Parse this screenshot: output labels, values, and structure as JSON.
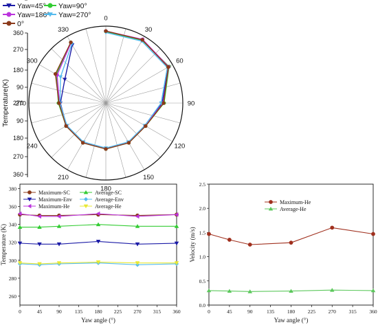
{
  "chart_data": [
    {
      "type": "polar-line",
      "title": "",
      "radial_label": "Temperature(K)",
      "angle_ticks": [
        "0",
        "30",
        "60",
        "90",
        "120",
        "150",
        "180",
        "210",
        "240",
        "270",
        "300",
        "330"
      ],
      "radial_ticks_upper": [
        "360",
        "270",
        "180",
        "90",
        "0"
      ],
      "radial_ticks_lower": [
        "90",
        "180",
        "270",
        "360"
      ],
      "center_tick": "270",
      "legend": {
        "placement": "top-left"
      },
      "series": [
        {
          "name": "Yaw=45°",
          "color": "#1a1aa6",
          "marker": "triangle-down",
          "theta": [
            0,
            30,
            60,
            90,
            120,
            150,
            180,
            210,
            240,
            270,
            300,
            330
          ],
          "r": [
            348,
            352,
            350,
            318,
            296,
            296,
            296,
            296,
            296,
            296,
            300,
            340
          ]
        },
        {
          "name": "Yaw=90°",
          "color": "#33cc33",
          "marker": "circle",
          "theta": [
            0,
            30,
            60,
            90,
            120,
            150,
            180,
            210,
            240,
            270,
            300,
            330
          ],
          "r": [
            349,
            351,
            352,
            322,
            297,
            297,
            297,
            297,
            297,
            300,
            320,
            346
          ]
        },
        {
          "name": "Yaw=180°",
          "color": "#bb33dd",
          "marker": "circle",
          "theta": [
            0,
            30,
            60,
            90,
            120,
            150,
            180,
            210,
            240,
            270,
            300,
            330
          ],
          "r": [
            350,
            353,
            351,
            320,
            296,
            296,
            296,
            296,
            296,
            298,
            318,
            345
          ]
        },
        {
          "name": "Yaw=270°",
          "color": "#55bbee",
          "marker": "triangle-down",
          "theta": [
            0,
            30,
            60,
            90,
            120,
            150,
            180,
            210,
            240,
            270,
            300,
            330
          ],
          "r": [
            347,
            349,
            348,
            316,
            295,
            295,
            295,
            295,
            295,
            297,
            310,
            342
          ]
        },
        {
          "name": "0°",
          "color": "#8b3a1a",
          "marker": "circle",
          "theta": [
            0,
            30,
            60,
            90,
            120,
            150,
            180,
            210,
            240,
            270,
            300,
            330
          ],
          "r": [
            350,
            352,
            350,
            321,
            297,
            297,
            297,
            297,
            297,
            299,
            322,
            346
          ]
        }
      ]
    },
    {
      "type": "line",
      "xlabel": "Yaw angle (°)",
      "ylabel": "Temperature (K)",
      "xlim": [
        0,
        360
      ],
      "ylim": [
        250,
        385
      ],
      "xticks": [
        0,
        45,
        90,
        135,
        180,
        225,
        270,
        315,
        360
      ],
      "yticks": [
        260,
        280,
        300,
        320,
        340,
        360,
        380
      ],
      "legend": {
        "placement": "top"
      },
      "series": [
        {
          "name": "Maximum-SC",
          "color": "#8b3a1a",
          "marker": "circle",
          "x": [
            0,
            45,
            90,
            180,
            270,
            360
          ],
          "y": [
            351,
            350,
            350,
            351,
            350,
            351
          ]
        },
        {
          "name": "Average-SC",
          "color": "#33cc33",
          "marker": "triangle-up",
          "x": [
            0,
            45,
            90,
            180,
            270,
            360
          ],
          "y": [
            337,
            337,
            338,
            340,
            338,
            338
          ]
        },
        {
          "name": "Maximum-Env",
          "color": "#1a1aa6",
          "marker": "triangle-down",
          "x": [
            0,
            45,
            90,
            180,
            270,
            360
          ],
          "y": [
            319,
            318,
            318,
            321,
            318,
            319
          ]
        },
        {
          "name": "Average-Env",
          "color": "#55bbee",
          "marker": "diamond",
          "x": [
            0,
            45,
            90,
            180,
            270,
            360
          ],
          "y": [
            296,
            295,
            296,
            297,
            295,
            296
          ]
        },
        {
          "name": "Maximum-He",
          "color": "#bb33dd",
          "marker": "triangle-left",
          "x": [
            0,
            45,
            90,
            180,
            270,
            360
          ],
          "y": [
            352,
            349,
            349,
            352,
            349,
            351
          ]
        },
        {
          "name": "Average-He",
          "color": "#e8e833",
          "marker": "triangle-down",
          "x": [
            0,
            45,
            90,
            180,
            270,
            360
          ],
          "y": [
            297,
            296,
            297,
            298,
            297,
            297
          ]
        }
      ]
    },
    {
      "type": "line",
      "xlabel": "Yaw angle (°)",
      "ylabel": "Velocity (m/s)",
      "xlim": [
        0,
        360
      ],
      "ylim": [
        0,
        2.5
      ],
      "xticks": [
        0,
        45,
        90,
        135,
        180,
        225,
        270,
        315,
        360
      ],
      "yticks": [
        0.0,
        0.5,
        1.0,
        1.5,
        2.0,
        2.5
      ],
      "ytick_labels": [
        "0.0",
        "0.5",
        "1.0",
        "1.5",
        "2.0",
        "2.5"
      ],
      "legend": {
        "placement": "top-center"
      },
      "series": [
        {
          "name": "Maximum-He",
          "color": "#a0301e",
          "marker": "circle",
          "x": [
            0,
            45,
            90,
            180,
            270,
            360
          ],
          "y": [
            1.47,
            1.35,
            1.25,
            1.29,
            1.6,
            1.47
          ]
        },
        {
          "name": "Average-He",
          "color": "#5cc85c",
          "marker": "triangle-up",
          "x": [
            0,
            45,
            90,
            180,
            270,
            360
          ],
          "y": [
            0.3,
            0.29,
            0.28,
            0.29,
            0.31,
            0.3
          ]
        }
      ]
    }
  ]
}
